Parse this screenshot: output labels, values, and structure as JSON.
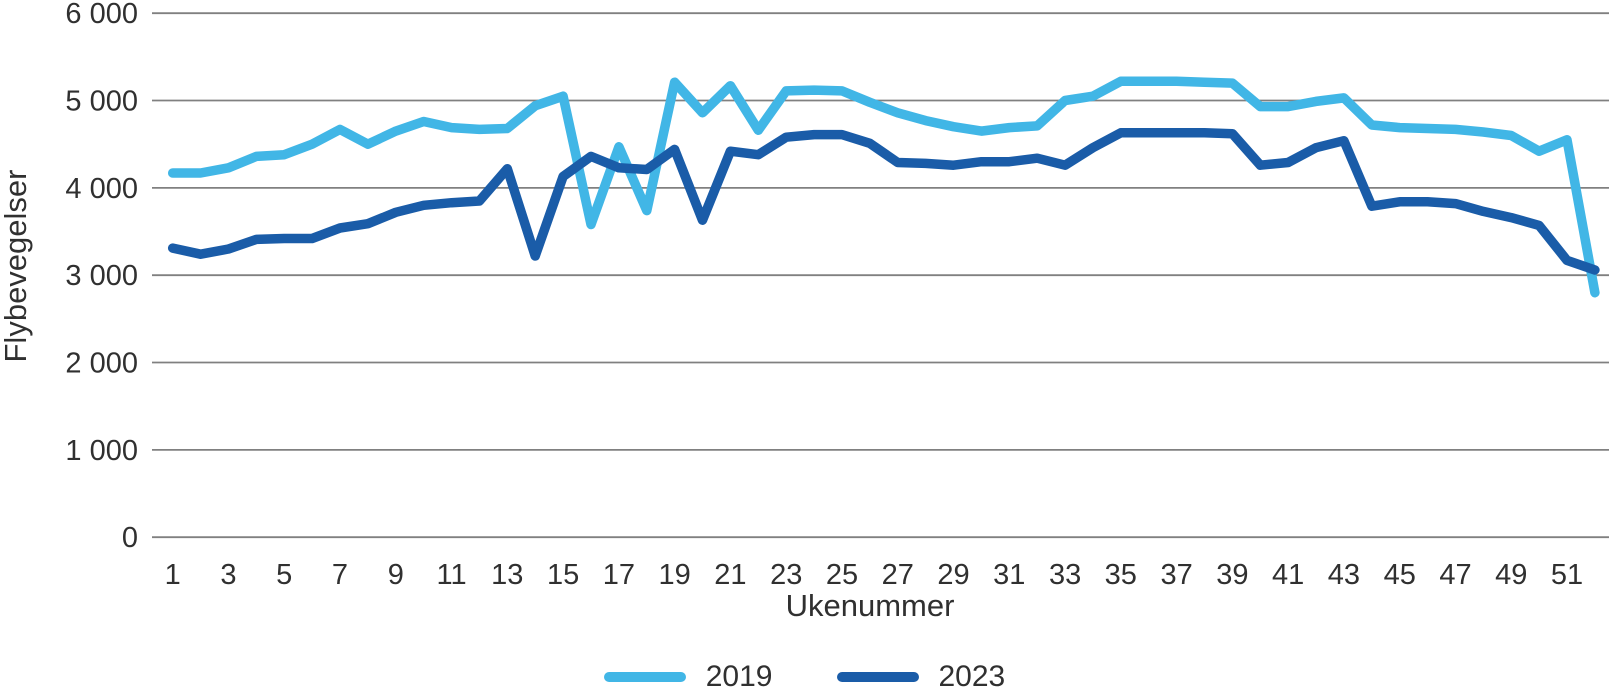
{
  "chart_data": {
    "type": "line",
    "title": "",
    "xlabel": "Ukenummer",
    "ylabel": "Flybevegelser",
    "x": [
      1,
      2,
      3,
      4,
      5,
      6,
      7,
      8,
      9,
      10,
      11,
      12,
      13,
      14,
      15,
      16,
      17,
      18,
      19,
      20,
      21,
      22,
      23,
      24,
      25,
      26,
      27,
      28,
      29,
      30,
      31,
      32,
      33,
      34,
      35,
      36,
      37,
      38,
      39,
      40,
      41,
      42,
      43,
      44,
      45,
      46,
      47,
      48,
      49,
      50,
      51,
      52
    ],
    "xticks": [
      1,
      3,
      5,
      7,
      9,
      11,
      13,
      15,
      17,
      19,
      21,
      23,
      25,
      27,
      29,
      31,
      33,
      35,
      37,
      39,
      41,
      43,
      45,
      47,
      49,
      51
    ],
    "ylim": [
      0,
      6000
    ],
    "yticks": [
      0,
      1000,
      2000,
      3000,
      4000,
      5000,
      6000
    ],
    "ytick_labels": [
      "0",
      "1 000",
      "2 000",
      "3 000",
      "4 000",
      "5 000",
      "6 000"
    ],
    "grid": true,
    "legend_position": "bottom",
    "gridline_color": "#808080",
    "text_color": "#303030",
    "series": [
      {
        "name": "2019",
        "color": "#41B6E6",
        "values": [
          4170,
          4170,
          4230,
          4360,
          4380,
          4500,
          4670,
          4500,
          4650,
          4760,
          4690,
          4670,
          4680,
          4940,
          5050,
          3580,
          4470,
          3740,
          5210,
          4860,
          5170,
          4660,
          5110,
          5120,
          5110,
          4980,
          4860,
          4770,
          4700,
          4650,
          4690,
          4710,
          5000,
          5050,
          5220,
          5220,
          5220,
          5210,
          5200,
          4930,
          4930,
          4990,
          5030,
          4720,
          4690,
          4680,
          4670,
          4640,
          4600,
          4420,
          4550,
          2800
        ]
      },
      {
        "name": "2023",
        "color": "#1A5CA8",
        "values": [
          3310,
          3240,
          3300,
          3410,
          3420,
          3420,
          3540,
          3590,
          3720,
          3800,
          3830,
          3850,
          4220,
          3220,
          4130,
          4360,
          4230,
          4210,
          4440,
          3630,
          4420,
          4380,
          4580,
          4610,
          4610,
          4510,
          4290,
          4280,
          4260,
          4300,
          4300,
          4340,
          4260,
          4460,
          4630,
          4630,
          4630,
          4630,
          4620,
          4260,
          4290,
          4460,
          4540,
          3790,
          3840,
          3840,
          3820,
          3730,
          3660,
          3570,
          3170,
          3060
        ]
      }
    ]
  }
}
